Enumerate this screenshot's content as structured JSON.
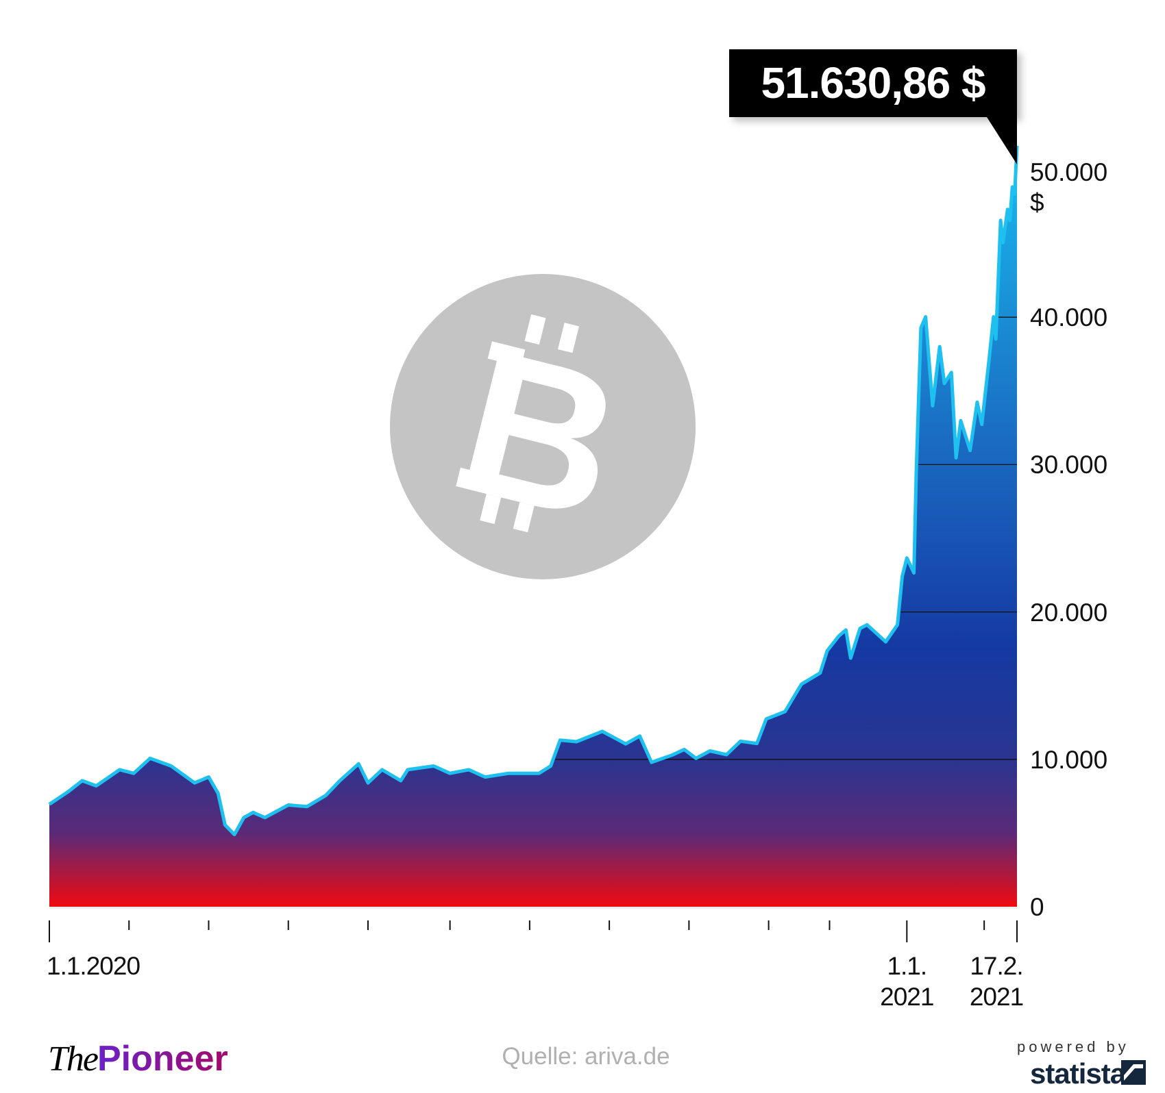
{
  "chart_data": {
    "type": "area",
    "title": "",
    "xlabel": "",
    "ylabel": "",
    "y_unit": "$",
    "ylim": [
      0,
      50000
    ],
    "y_ticks": [
      {
        "value": 0,
        "label": "0"
      },
      {
        "value": 10000,
        "label": "10.000"
      },
      {
        "value": 20000,
        "label": "20.000"
      },
      {
        "value": 30000,
        "label": "30.000"
      },
      {
        "value": 40000,
        "label": "40.000"
      },
      {
        "value": 50000,
        "label": "50.000",
        "unit": "$"
      }
    ],
    "x_range": [
      "2020-01-01",
      "2021-02-17"
    ],
    "x_tick_labels": [
      {
        "date": "2020-01-01",
        "line1": "1.1.2020",
        "line2": ""
      },
      {
        "date": "2021-01-01",
        "line1": "1.1.",
        "line2": "2021"
      },
      {
        "date": "2021-02-17",
        "line1": "17.2.",
        "line2": "2021"
      }
    ],
    "x_ticks": [
      "2020-01-01",
      "2020-02-04",
      "2020-03-09",
      "2020-04-12",
      "2020-05-16",
      "2020-06-20",
      "2020-07-24",
      "2020-08-27",
      "2020-09-30",
      "2020-11-03",
      "2020-11-29",
      "2021-01-01",
      "2021-02-03",
      "2021-02-17"
    ],
    "grid": true,
    "annotation": {
      "date": "2021-02-17",
      "label": "51.630,86 $"
    },
    "colors": {
      "line": "#1ec0f0",
      "fill_top": "#16aee6",
      "fill_mid": "#1538a0",
      "fill_bottom": "#ee0a10",
      "badge": "#000000"
    },
    "series": [
      {
        "x": [
          "2020-01-01",
          "2020-01-09",
          "2020-01-15",
          "2020-01-21",
          "2020-01-31",
          "2020-02-06",
          "2020-02-13",
          "2020-02-22",
          "2020-03-03",
          "2020-03-09",
          "2020-03-13",
          "2020-03-16",
          "2020-03-20",
          "2020-03-24",
          "2020-03-28",
          "2020-04-02",
          "2020-04-12",
          "2020-04-20",
          "2020-04-28",
          "2020-05-04",
          "2020-05-12",
          "2020-05-16",
          "2020-05-22",
          "2020-05-30",
          "2020-06-02",
          "2020-06-13",
          "2020-06-20",
          "2020-06-28",
          "2020-07-05",
          "2020-07-15",
          "2020-07-28",
          "2020-08-02",
          "2020-08-06",
          "2020-08-13",
          "2020-08-24",
          "2020-09-03",
          "2020-09-09",
          "2020-09-14",
          "2020-09-23",
          "2020-09-28",
          "2020-10-03",
          "2020-10-09",
          "2020-10-16",
          "2020-10-22",
          "2020-10-29",
          "2020-11-02",
          "2020-11-10",
          "2020-11-17",
          "2020-11-25",
          "2020-11-28",
          "2020-12-03",
          "2020-12-06",
          "2020-12-08",
          "2020-12-12",
          "2020-12-15",
          "2020-12-23",
          "2020-12-28",
          "2020-12-30",
          "2021-01-01",
          "2021-01-04",
          "2021-01-05",
          "2021-01-07",
          "2021-01-09",
          "2021-01-12",
          "2021-01-15",
          "2021-01-17",
          "2021-01-20",
          "2021-01-22",
          "2021-01-24",
          "2021-01-26",
          "2021-01-28",
          "2021-01-31",
          "2021-02-02",
          "2021-02-05",
          "2021-02-07",
          "2021-02-08",
          "2021-02-10",
          "2021-02-11",
          "2021-02-13",
          "2021-02-14",
          "2021-02-15",
          "2021-02-16",
          "2021-02-17"
        ],
        "values": [
          6950,
          7800,
          8550,
          8200,
          9300,
          9050,
          10070,
          9550,
          8400,
          8800,
          7700,
          5550,
          4900,
          6050,
          6400,
          6050,
          6900,
          6800,
          7550,
          8550,
          9700,
          8400,
          9300,
          8550,
          9300,
          9550,
          9050,
          9300,
          8800,
          9050,
          9050,
          9550,
          11300,
          11200,
          11900,
          11050,
          11580,
          9800,
          10300,
          10670,
          10070,
          10570,
          10320,
          11230,
          11080,
          12740,
          13240,
          15100,
          15860,
          17370,
          18380,
          18780,
          16870,
          18880,
          19130,
          17975,
          19130,
          22400,
          23660,
          22650,
          29450,
          39270,
          40030,
          33990,
          38000,
          35500,
          36250,
          30460,
          32980,
          31970,
          30960,
          34240,
          32730,
          37010,
          40030,
          38520,
          46570,
          45060,
          47320,
          46570,
          48840,
          48340,
          51630.86
        ]
      }
    ]
  },
  "footer": {
    "brand_the": "The",
    "brand_pioneer": "Pioneer",
    "source": "Quelle: ariva.de",
    "powered_by": "powered by",
    "statista": "statista"
  },
  "icons": {
    "watermark": "bitcoin-logo-icon",
    "statista": "statista-mark-icon"
  }
}
